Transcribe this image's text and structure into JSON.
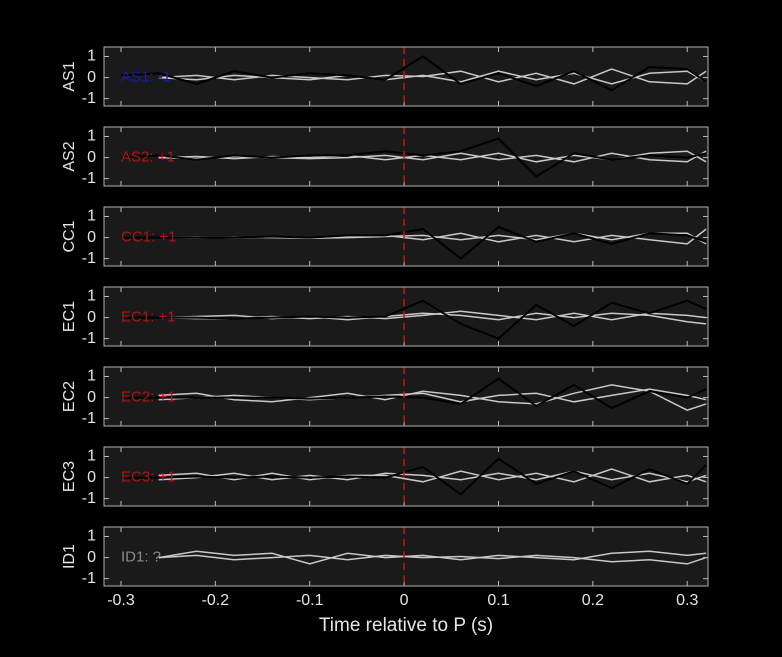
{
  "chart_data": [
    {
      "type": "line",
      "ylabel": "AS1",
      "annotation": "AS1: -1",
      "annotation_color": "#1a1aa8",
      "vline": 0,
      "vline_color": "#cc1111",
      "xlim": [
        -0.318,
        0.322
      ],
      "ylim": [
        -1.35,
        1.45
      ],
      "yticks": [
        -1,
        0,
        1
      ],
      "x": [
        -0.3,
        -0.26,
        -0.22,
        -0.18,
        -0.14,
        -0.1,
        -0.06,
        -0.02,
        0.02,
        0.06,
        0.1,
        0.14,
        0.18,
        0.22,
        0.26,
        0.3,
        0.32
      ],
      "series": [
        {
          "color": "#c8c8c8",
          "values": [
            null,
            0,
            0.1,
            -0.1,
            0.1,
            0,
            -0.1,
            0.1,
            0.05,
            0.3,
            -0.2,
            0.2,
            -0.3,
            0.4,
            -0.2,
            -0.3,
            0.3
          ]
        },
        {
          "color": "#c8c8c8",
          "values": [
            null,
            0,
            -0.1,
            0.1,
            0,
            -0.1,
            0.1,
            -0.1,
            0.1,
            -0.2,
            0.3,
            -0.1,
            0.2,
            -0.3,
            0.2,
            0.3,
            -0.2
          ]
        },
        {
          "color": "#000000",
          "values": [
            0.1,
            0.2,
            -0.3,
            0.3,
            0,
            0.2,
            0.1,
            -0.1,
            1,
            -0.3,
            0.2,
            -0.4,
            0.3,
            -0.6,
            0.5,
            0.4,
            -0.2
          ]
        }
      ]
    },
    {
      "type": "line",
      "ylabel": "AS2",
      "annotation": "AS2: +1",
      "annotation_color": "#b01515",
      "vline": 0,
      "vline_color": "#cc1111",
      "xlim": [
        -0.318,
        0.322
      ],
      "ylim": [
        -1.35,
        1.45
      ],
      "yticks": [
        -1,
        0,
        1
      ],
      "x": [
        -0.3,
        -0.26,
        -0.22,
        -0.18,
        -0.14,
        -0.1,
        -0.06,
        -0.02,
        0.02,
        0.06,
        0.1,
        0.14,
        0.18,
        0.22,
        0.26,
        0.3,
        0.32
      ],
      "series": [
        {
          "color": "#c8c8c8",
          "values": [
            null,
            0,
            0.05,
            -0.05,
            0.05,
            0,
            0.1,
            -0.1,
            0.1,
            -0.1,
            0.2,
            -0.2,
            0.1,
            -0.1,
            0.2,
            0.3,
            -0.2
          ]
        },
        {
          "color": "#c8c8c8",
          "values": [
            null,
            0,
            -0.05,
            0.05,
            0,
            -0.05,
            0,
            0.1,
            -0.1,
            0.2,
            -0.1,
            0.1,
            -0.2,
            0.2,
            -0.1,
            -0.2,
            0.3
          ]
        },
        {
          "color": "#000000",
          "values": [
            0,
            0.1,
            -0.1,
            0.1,
            0,
            0.1,
            0.1,
            0.3,
            0.1,
            0.3,
            0.9,
            -0.9,
            0.2,
            -0.1,
            0.1,
            0,
            0.2
          ]
        }
      ]
    },
    {
      "type": "line",
      "ylabel": "CC1",
      "annotation": "CC1: +1",
      "annotation_color": "#b01515",
      "vline": 0,
      "vline_color": "#cc1111",
      "xlim": [
        -0.318,
        0.322
      ],
      "ylim": [
        -1.35,
        1.45
      ],
      "yticks": [
        -1,
        0,
        1
      ],
      "x": [
        -0.3,
        -0.26,
        -0.22,
        -0.18,
        -0.14,
        -0.1,
        -0.06,
        -0.02,
        0.02,
        0.06,
        0.1,
        0.14,
        0.18,
        0.22,
        0.26,
        0.3,
        0.32
      ],
      "series": [
        {
          "color": "#c8c8c8",
          "values": [
            null,
            0,
            0.02,
            -0.02,
            0.03,
            0,
            0.05,
            0.1,
            -0.1,
            0.2,
            -0.2,
            0.1,
            -0.2,
            0.1,
            -0.1,
            -0.3,
            0.4
          ]
        },
        {
          "color": "#c8c8c8",
          "values": [
            null,
            0,
            -0.02,
            0.02,
            0,
            -0.03,
            0,
            0.05,
            0.1,
            -0.1,
            0.1,
            -0.1,
            0.2,
            -0.1,
            0.2,
            0.2,
            -0.3
          ]
        },
        {
          "color": "#000000",
          "values": [
            0,
            0,
            0,
            0,
            0.05,
            0,
            0.1,
            0.1,
            0.4,
            -1,
            0.5,
            -0.2,
            0.2,
            -0.3,
            0.2,
            0.1,
            -0.2
          ]
        }
      ]
    },
    {
      "type": "line",
      "ylabel": "EC1",
      "annotation": "EC1: +1",
      "annotation_color": "#b01515",
      "vline": 0,
      "vline_color": "#cc1111",
      "xlim": [
        -0.318,
        0.322
      ],
      "ylim": [
        -1.35,
        1.45
      ],
      "yticks": [
        -1,
        0,
        1
      ],
      "x": [
        -0.3,
        -0.26,
        -0.22,
        -0.18,
        -0.14,
        -0.1,
        -0.06,
        -0.02,
        0.02,
        0.06,
        0.1,
        0.14,
        0.18,
        0.22,
        0.26,
        0.3,
        0.32
      ],
      "series": [
        {
          "color": "#c8c8c8",
          "values": [
            null,
            0,
            0.05,
            0.1,
            -0.05,
            0.05,
            -0.1,
            0.05,
            0.2,
            0.1,
            -0.1,
            0.2,
            0,
            0.2,
            0.1,
            -0.2,
            -0.3
          ]
        },
        {
          "color": "#c8c8c8",
          "values": [
            null,
            0,
            -0.05,
            -0.05,
            0.05,
            -0.05,
            0.05,
            -0.05,
            0.1,
            0.3,
            0.1,
            -0.1,
            0.2,
            -0.1,
            0.2,
            0.1,
            0
          ]
        },
        {
          "color": "#000000",
          "values": [
            0,
            0,
            0,
            -0.05,
            0,
            0.05,
            0,
            0.05,
            0.8,
            -0.3,
            -1,
            0.6,
            -0.4,
            0.7,
            0.2,
            0.8,
            0.4
          ]
        }
      ]
    },
    {
      "type": "line",
      "ylabel": "EC2",
      "annotation": "EC2: +1",
      "annotation_color": "#b01515",
      "vline": 0,
      "vline_color": "#cc1111",
      "xlim": [
        -0.318,
        0.322
      ],
      "ylim": [
        -1.35,
        1.45
      ],
      "yticks": [
        -1,
        0,
        1
      ],
      "x": [
        -0.3,
        -0.26,
        -0.22,
        -0.18,
        -0.14,
        -0.1,
        -0.06,
        -0.02,
        0.02,
        0.06,
        0.1,
        0.14,
        0.18,
        0.22,
        0.26,
        0.3,
        0.32
      ],
      "series": [
        {
          "color": "#c8c8c8",
          "values": [
            null,
            0.1,
            0.2,
            -0.1,
            -0.2,
            0,
            0.2,
            -0.1,
            0.3,
            0.1,
            -0.2,
            -0.3,
            0.2,
            0.6,
            0.3,
            -0.6,
            -0.3
          ]
        },
        {
          "color": "#c8c8c8",
          "values": [
            null,
            -0.1,
            0,
            0.1,
            0,
            -0.1,
            0,
            0.1,
            0.2,
            -0.2,
            0.1,
            0.2,
            -0.2,
            0.1,
            0.4,
            0.1,
            -0.1
          ]
        },
        {
          "color": "#000000",
          "values": [
            0,
            0,
            0,
            0,
            0,
            -0.05,
            0,
            0.05,
            0,
            -0.3,
            0.9,
            -0.4,
            0.6,
            -0.5,
            0.3,
            0,
            0.4
          ]
        }
      ]
    },
    {
      "type": "line",
      "ylabel": "EC3",
      "annotation": "EC3: +1",
      "annotation_color": "#b01515",
      "vline": 0,
      "vline_color": "#cc1111",
      "xlim": [
        -0.318,
        0.322
      ],
      "ylim": [
        -1.35,
        1.45
      ],
      "yticks": [
        -1,
        0,
        1
      ],
      "x": [
        -0.3,
        -0.26,
        -0.22,
        -0.18,
        -0.14,
        -0.1,
        -0.06,
        -0.02,
        0.02,
        0.06,
        0.1,
        0.14,
        0.18,
        0.22,
        0.26,
        0.3,
        0.32
      ],
      "series": [
        {
          "color": "#c8c8c8",
          "values": [
            null,
            0.1,
            0.2,
            -0.1,
            0.2,
            -0.1,
            0.1,
            0.1,
            -0.2,
            0.3,
            -0.1,
            0.2,
            -0.2,
            0.4,
            -0.2,
            0.1,
            -0.2
          ]
        },
        {
          "color": "#c8c8c8",
          "values": [
            null,
            -0.1,
            0,
            0.2,
            -0.1,
            0.1,
            -0.1,
            0.2,
            0.1,
            -0.1,
            0.2,
            -0.1,
            0.3,
            -0.1,
            0.2,
            -0.2,
            0.1
          ]
        },
        {
          "color": "#000000",
          "values": [
            0,
            0,
            0.05,
            0,
            0.05,
            0,
            0.05,
            0,
            0.5,
            -0.8,
            0.9,
            -0.3,
            0.3,
            -0.5,
            0.4,
            -0.3,
            0.6
          ]
        }
      ]
    },
    {
      "type": "line",
      "ylabel": "ID1",
      "annotation": "ID1: ?",
      "annotation_color": "#8a8a8a",
      "vline": 0,
      "vline_color": "#cc1111",
      "xlim": [
        -0.318,
        0.322
      ],
      "ylim": [
        -1.35,
        1.45
      ],
      "yticks": [
        -1,
        0,
        1
      ],
      "xticks": [
        -0.3,
        -0.2,
        -0.1,
        0,
        0.1,
        0.2,
        0.3
      ],
      "xlabel": "Time relative to P (s)",
      "x": [
        -0.3,
        -0.26,
        -0.22,
        -0.18,
        -0.14,
        -0.1,
        -0.06,
        -0.02,
        0.02,
        0.06,
        0.1,
        0.14,
        0.18,
        0.22,
        0.26,
        0.3,
        0.32
      ],
      "series": [
        {
          "color": "#c8c8c8",
          "values": [
            null,
            0,
            0.3,
            0.1,
            0.2,
            -0.3,
            0.2,
            0,
            0.1,
            -0.1,
            0.1,
            0,
            -0.1,
            0.2,
            0.3,
            0.1,
            0.2
          ]
        },
        {
          "color": "#c8c8c8",
          "values": [
            null,
            0,
            0.1,
            -0.1,
            0,
            0.1,
            -0.1,
            0.1,
            0,
            0.05,
            -0.05,
            0.1,
            0,
            -0.2,
            -0.1,
            -0.3,
            0
          ]
        }
      ]
    }
  ]
}
